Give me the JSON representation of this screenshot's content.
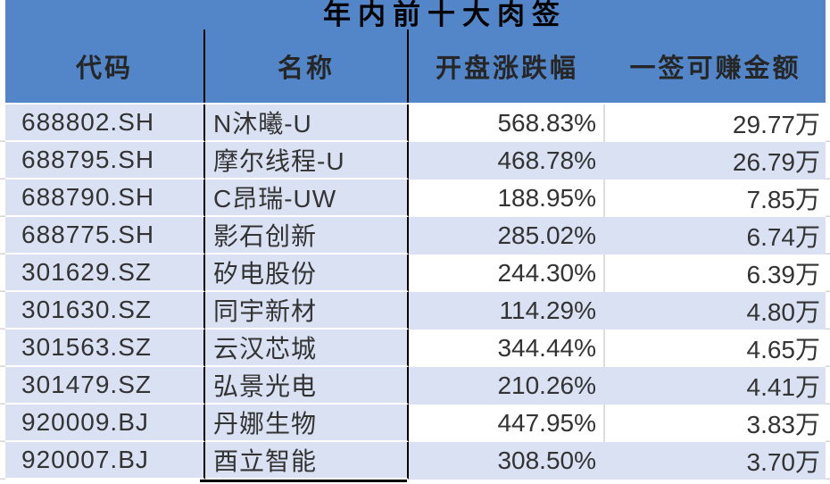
{
  "chart_data": {
    "type": "table",
    "title": "年内前十大肉签",
    "columns": [
      "代码",
      "名称",
      "开盘涨跌幅",
      "一签可赚金额"
    ],
    "rows": [
      [
        "688802.SH",
        "N沐曦-U",
        "568.83%",
        "29.77万"
      ],
      [
        "688795.SH",
        "摩尔线程-U",
        "468.78%",
        "26.79万"
      ],
      [
        "688790.SH",
        "C昂瑞-UW",
        "188.95%",
        "7.85万"
      ],
      [
        "688775.SH",
        "影石创新",
        "285.02%",
        "6.74万"
      ],
      [
        "301629.SZ",
        "矽电股份",
        "244.30%",
        "6.39万"
      ],
      [
        "301630.SZ",
        "同宇新材",
        "114.29%",
        "4.80万"
      ],
      [
        "301563.SZ",
        "云汉芯城",
        "344.44%",
        "4.65万"
      ],
      [
        "301479.SZ",
        "弘景光电",
        "210.26%",
        "4.41万"
      ],
      [
        "920009.BJ",
        "丹娜生物",
        "447.95%",
        "3.83万"
      ],
      [
        "920007.BJ",
        "酉立智能",
        "308.50%",
        "3.70万"
      ]
    ],
    "layout": {
      "legend": "none",
      "grid": "banded-rows-right-columns",
      "title_position": "top-center-on-blue-band"
    }
  },
  "colors": {
    "header_blue": "#5386C9",
    "row_light_blue": "#D9E1F2",
    "row_white": "#FFFFFF",
    "column_border_black": "#000000",
    "gridline_gray": "#DCDCDC",
    "title_text": "#000000",
    "header_text": "#262626",
    "body_text": "#333333"
  }
}
